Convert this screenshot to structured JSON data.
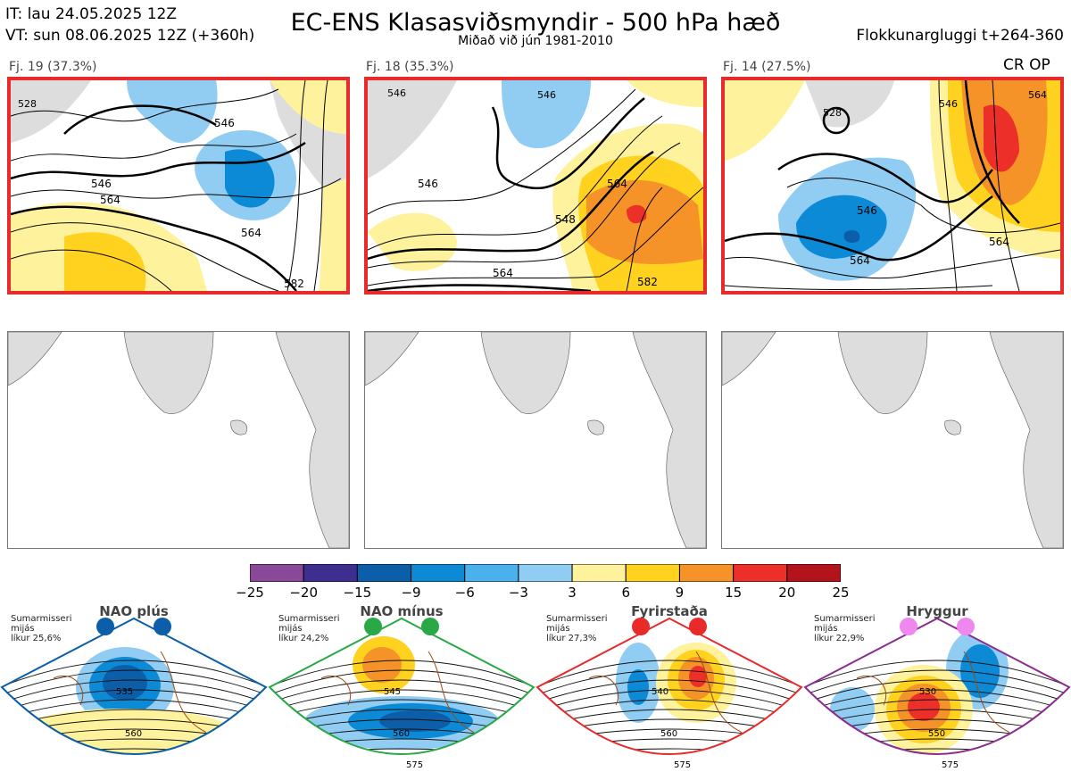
{
  "header": {
    "it_line": "IT: lau 24.05.2025 12Z",
    "vt_line": "VT: sun 08.06.2025 12Z  (+360h)",
    "title": "EC-ENS Klasasviðsmyndir - 500 hPa hæð",
    "subtitle": "Miðað við jún 1981-2010",
    "window": "Flokkunargluggi t+264-360"
  },
  "panels": [
    {
      "label": "Fj. 19 (37.3%)",
      "contours": [
        "528",
        "546",
        "546",
        "564",
        "564",
        "582"
      ]
    },
    {
      "label": "Fj. 18 (35.3%)",
      "contours": [
        "546",
        "546",
        "546",
        "564",
        "564",
        "582",
        "548"
      ]
    },
    {
      "label": "Fj. 14 (27.5%)",
      "contours": [
        "528",
        "546",
        "546",
        "564",
        "564",
        "564"
      ],
      "tag": "CR OP"
    }
  ],
  "colorbar": {
    "ticks": [
      "−25",
      "−20",
      "−15",
      "−9",
      "−6",
      "−3",
      "3",
      "6",
      "9",
      "15",
      "20",
      "25"
    ],
    "colors": [
      "#8a4899",
      "#3e2e8f",
      "#0c5ea8",
      "#0c8ad6",
      "#4ab1ec",
      "#91cdf3",
      "#ffffff",
      "#fff29c",
      "#ffd21f",
      "#f59328",
      "#ec3029",
      "#b3131b"
    ]
  },
  "regimes": [
    {
      "title": "NAO plús",
      "note": "Sumarmisseri\nmijás\nlíkur 25,6%",
      "labels": [
        "535",
        "560"
      ],
      "color": "#0c5ea8"
    },
    {
      "title": "NAO mínus",
      "note": "Sumarmisseri\nmijás\nlíkur 24,2%",
      "labels": [
        "545",
        "560",
        "575"
      ],
      "color": "#2aa847"
    },
    {
      "title": "Fyrirstaða",
      "note": "Sumarmisseri\nmijás\nlíkur 27,3%",
      "labels": [
        "540",
        "560",
        "575"
      ],
      "color": "#e82a2a"
    },
    {
      "title": "Hryggur",
      "note": "Sumarmisseri\nmijás\nlíkur 22,9%",
      "labels": [
        "530",
        "550",
        "575"
      ],
      "color": "#8b2d8f"
    }
  ]
}
